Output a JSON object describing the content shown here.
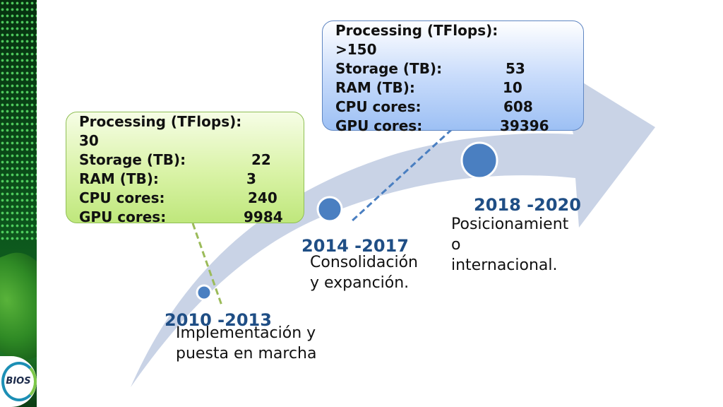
{
  "logo": {
    "text": "BIOS"
  },
  "milestones": [
    {
      "period": "2010 -2013",
      "description_lines": [
        "Implementación y",
        "puesta en marcha"
      ],
      "specs": {
        "processing_label": "Processing (TFlops):",
        "processing_value": "30",
        "storage_label": "Storage (TB):",
        "storage_value": "22",
        "ram_label": "RAM (TB):",
        "ram_value": "3",
        "cpu_label": "CPU cores:",
        "cpu_value": "240",
        "gpu_label": "GPU cores:",
        "gpu_value": "9984"
      }
    },
    {
      "period": "2014 -2017",
      "description_lines": [
        "Consolidación",
        "y expanción."
      ],
      "specs": {
        "processing_label": "Processing (TFlops):",
        "processing_value": ">150",
        "storage_label": "Storage (TB):",
        "storage_value": "53",
        "ram_label": "RAM (TB):",
        "ram_value": "10",
        "cpu_label": "CPU cores:",
        "cpu_value": "608",
        "gpu_label": "GPU cores:",
        "gpu_value": "39396"
      }
    },
    {
      "period": "2018 -2020",
      "description_lines": [
        "Posicionamient",
        "o",
        "internacional."
      ]
    }
  ],
  "colors": {
    "arrow": "#c9d3e6",
    "node": "#4a7fc1",
    "period_text": "#1f4e85",
    "green_connector": "#9bbb59",
    "blue_connector": "#4a7fc1"
  }
}
